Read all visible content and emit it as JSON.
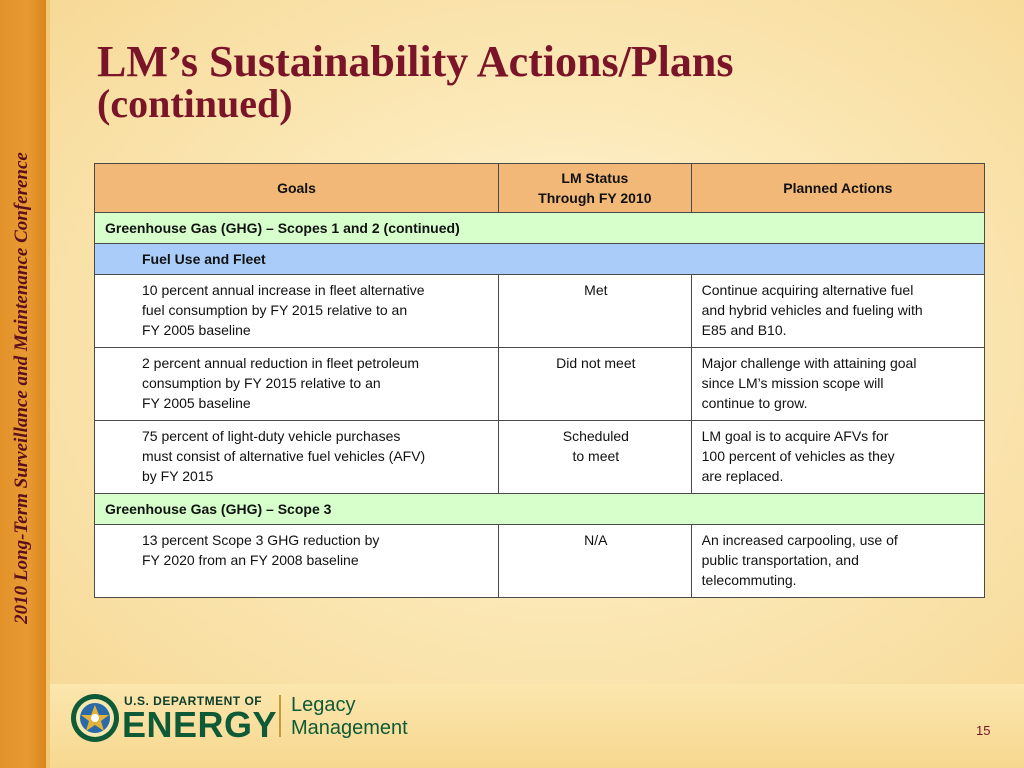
{
  "sidebar": {
    "vertical_text": "2010 Long-Term Surveillance and Maintenance Conference"
  },
  "title": {
    "line1": "LM’s Sustainability Actions/Plans",
    "line2": "(continued)"
  },
  "table": {
    "headers": {
      "goals": "Goals",
      "status": "LM Status\nThrough FY 2010",
      "actions": "Planned Actions"
    },
    "section_ghg12": "Greenhouse Gas  (GHG) – Scopes 1 and 2   (continued)",
    "subsection_fuel": "Fuel Use and Fleet",
    "rows": [
      {
        "goal": "10 percent annual increase in fleet alternative\nfuel consumption by FY 2015 relative to an\nFY 2005 baseline",
        "status": "Met",
        "action": "Continue acquiring alternative fuel\nand hybrid vehicles and fueling with\nE85 and B10."
      },
      {
        "goal": "2 percent  annual reduction in fleet petroleum\nconsumption by FY 2015 relative to an\nFY 2005 baseline",
        "status": "Did not meet",
        "action": "Major challenge with attaining goal\nsince LM’s mission scope will\ncontinue to grow."
      },
      {
        "goal": "75 percent  of light-duty vehicle purchases\nmust consist of alternative fuel vehicles (AFV)\nby FY 2015",
        "status": "Scheduled\nto meet",
        "action": "LM goal is to acquire AFVs for\n100 percent  of vehicles as they\nare replaced."
      }
    ],
    "section_ghg3": "Greenhouse Gas  (GHG) – Scope 3",
    "rows_scope3": [
      {
        "goal": "13 percent  Scope 3 GHG reduction by\nFY 2020 from an FY 2008 baseline",
        "status": "N/A",
        "action": "An increased carpooling, use of\npublic transportation, and\ntelecommuting."
      }
    ]
  },
  "footer": {
    "doe_small": "U.S. DEPARTMENT OF",
    "doe_big": "ENERGY",
    "legacy_line1": "Legacy",
    "legacy_line2": "Management",
    "page_number": "15"
  },
  "colors": {
    "title": "#7a1428",
    "header_bg": "#f2b877",
    "section_bg": "#d6ffcc",
    "subsection_bg": "#a9cdf8",
    "left_bar": "#e3922a",
    "doe_green": "#0f5a36"
  }
}
